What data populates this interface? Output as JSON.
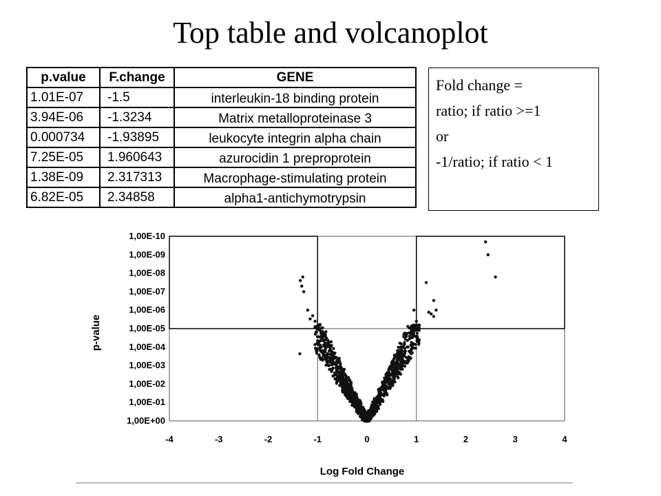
{
  "title": "Top table and volcanoplot",
  "table": {
    "headers": [
      "p.value",
      "F.change",
      "GENE"
    ],
    "rows": [
      [
        "1.01E-07",
        "-1.5",
        "interleukin-18 binding protein"
      ],
      [
        "3.94E-06",
        "-1.3234",
        "Matrix metalloproteinase 3"
      ],
      [
        "0.000734",
        "-1.93895",
        "leukocyte integrin alpha chain"
      ],
      [
        "7.25E-05",
        "1.960643",
        "azurocidin 1 preproprotein"
      ],
      [
        "1.38E-09",
        "2.317313",
        "Macrophage-stimulating protein"
      ],
      [
        "6.82E-05",
        "2.34858",
        "alpha1-antichymotrypsin"
      ]
    ]
  },
  "note": {
    "lines": [
      "Fold change =",
      "ratio; if ratio >=1",
      "or",
      "-1/ratio; if ratio < 1"
    ]
  },
  "chart_data": {
    "type": "scatter",
    "xlabel": "Log Fold Change",
    "ylabel": "p-value",
    "xlim": [
      -4,
      4
    ],
    "x_ticks": [
      "-4",
      "-3",
      "-2",
      "-1",
      "0",
      "1",
      "2",
      "3",
      "4"
    ],
    "y_scale": "neg-log10",
    "ylim": [
      1,
      1e-10
    ],
    "y_ticks": [
      "1,00E+00",
      "1,00E-01",
      "1,00E-02",
      "1,00E-03",
      "1,00E-04",
      "1,00E-05",
      "1,00E-06",
      "1,00E-07",
      "1,00E-08",
      "1,00E-09",
      "1,00E-10"
    ],
    "grid": false,
    "reference_lines": {
      "x": [
        -1,
        1
      ],
      "y": 1e-05
    },
    "highlight_boxes": [
      {
        "x": [
          -4,
          -1
        ],
        "y": [
          1e-05,
          1e-10
        ]
      },
      {
        "x": [
          1,
          4
        ],
        "y": [
          1e-05,
          1e-10
        ]
      }
    ],
    "marked_points": [
      {
        "x": 2.4,
        "y": 2e-10
      },
      {
        "x": 2.45,
        "y": 1e-09
      },
      {
        "x": 2.6,
        "y": 1.6e-08
      },
      {
        "x": 1.2,
        "y": 3.2e-08
      },
      {
        "x": 1.35,
        "y": 3e-07
      },
      {
        "x": 1.3,
        "y": 1.6e-06
      },
      {
        "x": 1.35,
        "y": 2.2e-06
      },
      {
        "x": 1.4,
        "y": 1e-06
      },
      {
        "x": 1.25,
        "y": 1.3e-06
      },
      {
        "x": 0.95,
        "y": 1e-06
      },
      {
        "x": 1.0,
        "y": 4e-06
      },
      {
        "x": -1.3,
        "y": 1.6e-08
      },
      {
        "x": -1.35,
        "y": 2.5e-08
      },
      {
        "x": -1.32,
        "y": 5e-08
      },
      {
        "x": -1.28,
        "y": 1e-07
      },
      {
        "x": -1.36,
        "y": 0.00023
      },
      {
        "x": -1.2,
        "y": 1e-06
      },
      {
        "x": -1.1,
        "y": 2e-06
      },
      {
        "x": -1.05,
        "y": 4e-06
      },
      {
        "x": -0.95,
        "y": 6e-06
      },
      {
        "x": -0.9,
        "y": 9e-06
      },
      {
        "x": -0.85,
        "y": 2e-05
      },
      {
        "x": -1.15,
        "y": 3e-06
      }
    ],
    "point_cloud": {
      "description_count": 1500,
      "shape": "V centered at 0"
    }
  }
}
